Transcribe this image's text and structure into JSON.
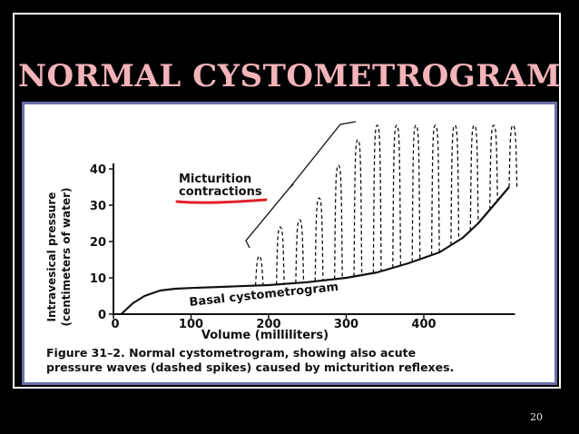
{
  "slide": {
    "title": "NORMAL CYSTOMETROGRAM",
    "page_number": "20",
    "background_color": "#000000",
    "title_color": "#f2b4b8",
    "figure_border_color": "#6d6fa8"
  },
  "chart_data": {
    "type": "line",
    "ylabel_line1": "Intravesical pressure",
    "ylabel_line2": "(centimeters of water)",
    "xlabel": "Volume (milliliters)",
    "xlim": [
      0,
      500
    ],
    "ylim": [
      0,
      40
    ],
    "x_ticks": [
      0,
      100,
      200,
      300,
      400
    ],
    "y_ticks": [
      0,
      10,
      20,
      30,
      40
    ],
    "grid": false,
    "series": [
      {
        "name": "Basal cystometrogram",
        "style": "solid",
        "x": [
          10,
          25,
          40,
          60,
          80,
          100,
          150,
          200,
          250,
          300,
          340,
          380,
          420,
          450,
          470,
          490,
          510
        ],
        "y": [
          0,
          3,
          5,
          6.5,
          7,
          7.2,
          7.6,
          8,
          8.8,
          10,
          11.5,
          14,
          17,
          21,
          25,
          30,
          35
        ]
      }
    ],
    "contractions": {
      "style": "dashed",
      "peaks": [
        {
          "x": 188,
          "y": 16
        },
        {
          "x": 215,
          "y": 24
        },
        {
          "x": 240,
          "y": 26
        },
        {
          "x": 265,
          "y": 32
        },
        {
          "x": 290,
          "y": 41
        },
        {
          "x": 315,
          "y": 48
        },
        {
          "x": 340,
          "y": 52
        },
        {
          "x": 365,
          "y": 52
        },
        {
          "x": 390,
          "y": 52
        },
        {
          "x": 415,
          "y": 52
        },
        {
          "x": 440,
          "y": 52
        },
        {
          "x": 465,
          "y": 52
        },
        {
          "x": 490,
          "y": 52
        },
        {
          "x": 515,
          "y": 52
        }
      ]
    },
    "annotations": {
      "micturition_line1": "Micturition",
      "micturition_line2": "contractions",
      "basal_label": "Basal cystometrogram",
      "underline_color": "#e0202a"
    },
    "caption": {
      "line1": "Figure 31–2.  Normal cystometrogram, showing also acute",
      "line2": "pressure waves (dashed spikes) caused by micturition reflexes."
    }
  }
}
